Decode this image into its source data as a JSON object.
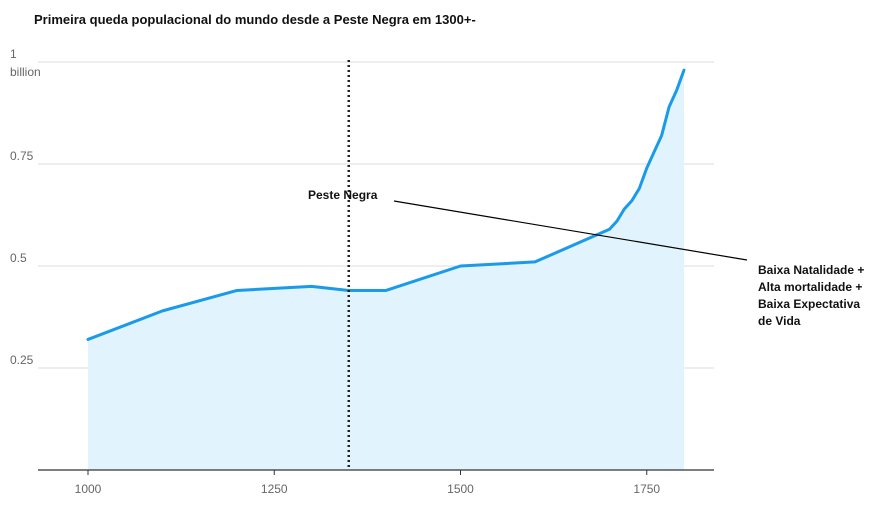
{
  "chart_data": {
    "type": "area",
    "title": "Primeira queda populacional do mundo desde a Peste Negra em 1300+-",
    "y_unit_label": "billion",
    "xlim": [
      1000,
      1800
    ],
    "ylim": [
      0,
      1
    ],
    "x_ticks": [
      1000,
      1250,
      1500,
      1750
    ],
    "y_ticks": [
      {
        "value": 0.25,
        "label": "0.25"
      },
      {
        "value": 0.5,
        "label": "0.5"
      },
      {
        "value": 0.75,
        "label": "0.75"
      },
      {
        "value": 1,
        "label": "1"
      }
    ],
    "grid": "horizontal",
    "colors": {
      "line": "#1a9ae8",
      "area": "#e1f3fd",
      "grid": "#dddddd",
      "axis": "#333333",
      "marker": "#222222"
    },
    "series": [
      {
        "x": [
          1000,
          1100,
          1200,
          1300,
          1350,
          1400,
          1500,
          1600,
          1700,
          1710,
          1720,
          1730,
          1740,
          1750,
          1760,
          1770,
          1780,
          1790,
          1800
        ],
        "y": [
          0.32,
          0.39,
          0.44,
          0.45,
          0.44,
          0.44,
          0.5,
          0.51,
          0.59,
          0.61,
          0.64,
          0.66,
          0.69,
          0.74,
          0.78,
          0.82,
          0.89,
          0.93,
          0.98
        ]
      }
    ],
    "annotations": [
      {
        "type": "vline",
        "x": 1350,
        "style": "dotted",
        "label": "Peste Negra"
      },
      {
        "type": "text-with-leader",
        "lines": [
          "Baixa Natalidade +",
          "Alta mortalidade +",
          "Baixa Expectativa",
          "de Vida"
        ]
      }
    ]
  }
}
